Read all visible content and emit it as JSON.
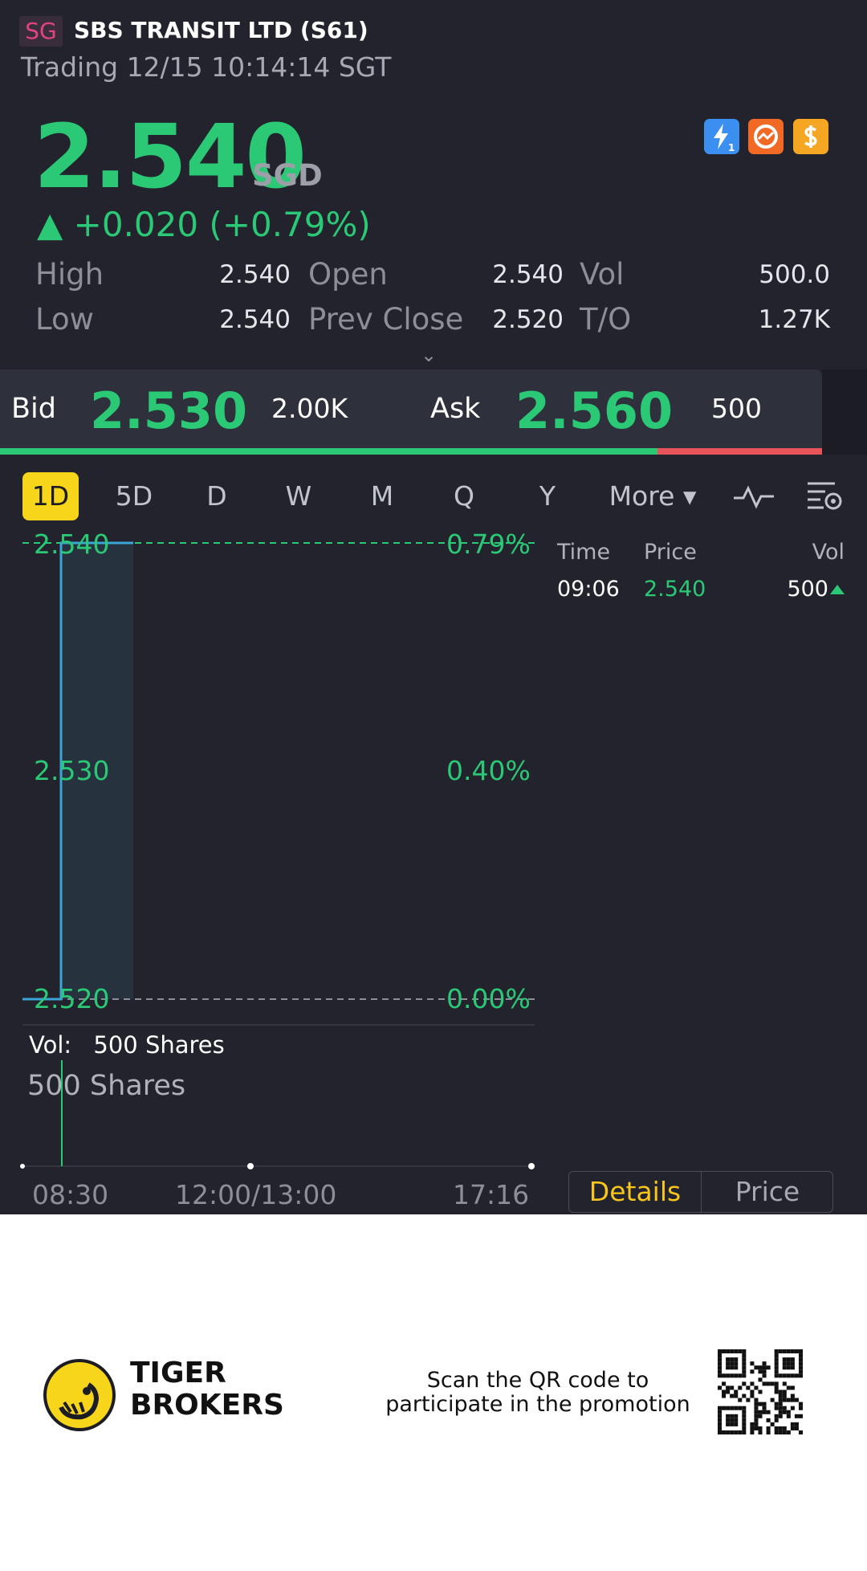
{
  "header": {
    "market_badge": "SG",
    "stock_title": "SBS TRANSIT LTD (S61)",
    "trading_status": "Trading 12/15 10:14:14 SGT"
  },
  "quote": {
    "price": "2.540",
    "currency": "SGD",
    "change": "▲ +0.020 (+0.79%)",
    "color_up": "#2bc875",
    "color_down": "#e8545a",
    "icons": [
      "lightning-level1-icon",
      "no-short-icon",
      "dollar-coin-icon"
    ],
    "stats": [
      {
        "label": "High",
        "value": "2.540"
      },
      {
        "label": "Open",
        "value": "2.540"
      },
      {
        "label": "Vol",
        "value": "500.0"
      },
      {
        "label": "Low",
        "value": "2.540"
      },
      {
        "label": "Prev Close",
        "value": "2.520"
      },
      {
        "label": "T/O",
        "value": "1.27K"
      }
    ],
    "expand_icon": "⌄"
  },
  "bid_ask": {
    "bid_label": "Bid",
    "bid_price": "2.530",
    "bid_size": "2.00K",
    "ask_label": "Ask",
    "ask_price": "2.560",
    "ask_size": "500",
    "bid_fraction": 0.8
  },
  "period_tabs": {
    "items": [
      "1D",
      "5D",
      "D",
      "W",
      "M",
      "Q",
      "Y",
      "More ▾"
    ],
    "active": "1D",
    "indicator_icon": "indicator-wave-icon",
    "settings_icon": "chart-settings-icon"
  },
  "chart": {
    "price_labels": [
      "2.540",
      "2.530",
      "2.520"
    ],
    "pct_labels": [
      "0.79%",
      "0.40%",
      "0.00%"
    ],
    "volume_label": "Vol:",
    "volume_value": "500 Shares",
    "volume_big": "500 Shares",
    "time_labels": [
      "08:30",
      "12:00/13:00",
      "17:16"
    ]
  },
  "chart_data": {
    "type": "line",
    "series": [
      {
        "values": [
          2.52,
          2.54,
          2.54
        ]
      }
    ],
    "x": [
      "08:30",
      "09:06",
      "10:14"
    ],
    "ylim": [
      2.52,
      2.54
    ],
    "volume": [
      {
        "time": "09:06",
        "shares": 500
      }
    ]
  },
  "trades": {
    "headers": [
      "Time",
      "Price",
      "Vol"
    ],
    "rows": [
      {
        "time": "09:06",
        "price": "2.540",
        "vol": "500"
      }
    ]
  },
  "bottom_tabs": {
    "details": "Details",
    "price": "Price",
    "active": "Details",
    "active_color": "#f7c51b"
  },
  "promo": {
    "brand_line1": "TIGER",
    "brand_line2": "BROKERS",
    "text": "Scan the QR code to participate in the promotion"
  }
}
